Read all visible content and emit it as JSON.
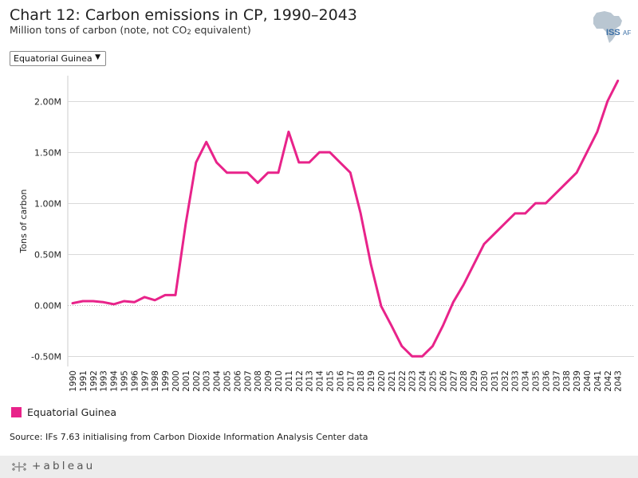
{
  "header": {
    "title": "Chart 12: Carbon emissions in CP, 1990–2043",
    "subtitle": "Million tons of carbon (note, not CO2 equivalent)",
    "logo_text": "ISS",
    "logo_suffix": "AF"
  },
  "filter": {
    "selected": "Equatorial Guinea",
    "arrow": "▼"
  },
  "legend": {
    "label": "Equatorial Guinea"
  },
  "source": "Source: IFs 7.63 initialising from Carbon Dioxide Information Analysis Center data",
  "footer": {
    "brand": "+ableau",
    "icon": "tableau-plus-icon"
  },
  "colors": {
    "series": "#e8238a",
    "grid": "#d9d9d9",
    "axis_text": "#222222",
    "footer_bg": "#ececec",
    "logo": "#b9c6d1"
  },
  "chart_data": {
    "type": "line",
    "title": "Chart 12: Carbon emissions in CP, 1990–2043",
    "ylabel": "Tons of carbon",
    "xlabel": "",
    "ylim": [
      -0.6,
      2.25
    ],
    "yticks": [
      {
        "value": -0.5,
        "label": "-0.50M"
      },
      {
        "value": 0.0,
        "label": "0.00M"
      },
      {
        "value": 0.5,
        "label": "0.50M"
      },
      {
        "value": 1.0,
        "label": "1.00M"
      },
      {
        "value": 1.5,
        "label": "1.50M"
      },
      {
        "value": 2.0,
        "label": "2.00M"
      }
    ],
    "x": [
      1990,
      1991,
      1992,
      1993,
      1994,
      1995,
      1996,
      1997,
      1998,
      1999,
      2000,
      2001,
      2002,
      2003,
      2004,
      2005,
      2006,
      2007,
      2008,
      2009,
      2010,
      2011,
      2012,
      2013,
      2014,
      2015,
      2016,
      2017,
      2018,
      2019,
      2020,
      2021,
      2022,
      2023,
      2024,
      2025,
      2026,
      2027,
      2028,
      2029,
      2030,
      2031,
      2032,
      2033,
      2034,
      2035,
      2036,
      2037,
      2038,
      2039,
      2040,
      2041,
      2042,
      2043
    ],
    "series": [
      {
        "name": "Equatorial Guinea",
        "values": [
          0.02,
          0.04,
          0.04,
          0.03,
          0.01,
          0.04,
          0.03,
          0.08,
          0.05,
          0.1,
          0.1,
          0.8,
          1.4,
          1.6,
          1.4,
          1.3,
          1.3,
          1.3,
          1.2,
          1.3,
          1.3,
          1.7,
          1.4,
          1.4,
          1.5,
          1.5,
          1.4,
          1.3,
          0.9,
          0.4,
          -0.01,
          -0.2,
          -0.4,
          -0.5,
          -0.5,
          -0.4,
          -0.2,
          0.03,
          0.2,
          0.4,
          0.6,
          0.7,
          0.8,
          0.9,
          0.9,
          1.0,
          1.0,
          1.1,
          1.2,
          1.3,
          1.5,
          1.7,
          2.0,
          2.2
        ]
      }
    ],
    "grid": true,
    "legend_position": "bottom-left"
  }
}
